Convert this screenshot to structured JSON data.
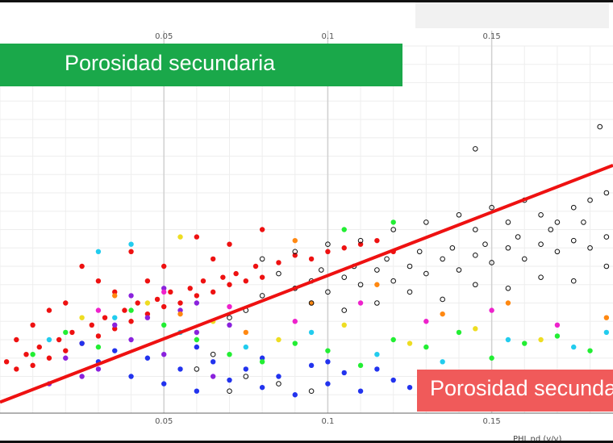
{
  "chart_data": {
    "type": "scatter",
    "x_ticks": [
      "0.05",
      "0.1",
      "0.15"
    ],
    "xlabel": "PHI_nd (v/v)",
    "xlim": [
      0.0,
      0.187
    ],
    "ylim": [
      0.0,
      1.0
    ],
    "grid": true,
    "annotations": [
      "Porosidad secundaria",
      "Porosidad secundaria"
    ],
    "trend_line": {
      "color": "#ee1111",
      "points": [
        [
          0.0,
          0.03
        ],
        [
          0.187,
          0.675
        ]
      ]
    },
    "series": [
      {
        "color_group": "red",
        "color": "#ee1111",
        "points": [
          [
            0.002,
            0.14
          ],
          [
            0.005,
            0.12
          ],
          [
            0.008,
            0.16
          ],
          [
            0.01,
            0.13
          ],
          [
            0.012,
            0.18
          ],
          [
            0.015,
            0.15
          ],
          [
            0.018,
            0.2
          ],
          [
            0.02,
            0.17
          ],
          [
            0.022,
            0.22
          ],
          [
            0.025,
            0.19
          ],
          [
            0.028,
            0.24
          ],
          [
            0.03,
            0.21
          ],
          [
            0.032,
            0.26
          ],
          [
            0.035,
            0.23
          ],
          [
            0.038,
            0.28
          ],
          [
            0.04,
            0.25
          ],
          [
            0.042,
            0.3
          ],
          [
            0.045,
            0.27
          ],
          [
            0.048,
            0.31
          ],
          [
            0.05,
            0.29
          ],
          [
            0.052,
            0.33
          ],
          [
            0.055,
            0.3
          ],
          [
            0.058,
            0.34
          ],
          [
            0.06,
            0.32
          ],
          [
            0.062,
            0.36
          ],
          [
            0.065,
            0.33
          ],
          [
            0.068,
            0.37
          ],
          [
            0.07,
            0.35
          ],
          [
            0.072,
            0.38
          ],
          [
            0.075,
            0.36
          ],
          [
            0.078,
            0.4
          ],
          [
            0.08,
            0.37
          ],
          [
            0.085,
            0.41
          ],
          [
            0.09,
            0.43
          ],
          [
            0.095,
            0.42
          ],
          [
            0.1,
            0.44
          ],
          [
            0.105,
            0.45
          ],
          [
            0.11,
            0.46
          ],
          [
            0.115,
            0.47
          ],
          [
            0.12,
            0.44
          ],
          [
            0.06,
            0.48
          ],
          [
            0.07,
            0.46
          ],
          [
            0.08,
            0.5
          ],
          [
            0.04,
            0.44
          ],
          [
            0.025,
            0.4
          ],
          [
            0.03,
            0.36
          ],
          [
            0.015,
            0.28
          ],
          [
            0.01,
            0.24
          ],
          [
            0.005,
            0.2
          ],
          [
            0.05,
            0.4
          ],
          [
            0.065,
            0.42
          ],
          [
            0.035,
            0.33
          ],
          [
            0.045,
            0.36
          ],
          [
            0.02,
            0.3
          ]
        ]
      },
      {
        "color_group": "blue",
        "color": "#2233ee",
        "points": [
          [
            0.04,
            0.1
          ],
          [
            0.05,
            0.08
          ],
          [
            0.06,
            0.06
          ],
          [
            0.07,
            0.09
          ],
          [
            0.08,
            0.07
          ],
          [
            0.09,
            0.05
          ],
          [
            0.1,
            0.08
          ],
          [
            0.11,
            0.06
          ],
          [
            0.12,
            0.09
          ],
          [
            0.125,
            0.07
          ],
          [
            0.13,
            0.1
          ],
          [
            0.115,
            0.12
          ],
          [
            0.105,
            0.11
          ],
          [
            0.095,
            0.13
          ],
          [
            0.085,
            0.1
          ],
          [
            0.075,
            0.12
          ],
          [
            0.065,
            0.14
          ],
          [
            0.055,
            0.12
          ],
          [
            0.045,
            0.15
          ],
          [
            0.035,
            0.17
          ],
          [
            0.025,
            0.19
          ],
          [
            0.03,
            0.14
          ],
          [
            0.06,
            0.18
          ],
          [
            0.08,
            0.15
          ],
          [
            0.1,
            0.14
          ]
        ]
      },
      {
        "color_group": "purple",
        "color": "#8a22dd",
        "points": [
          [
            0.02,
            0.15
          ],
          [
            0.03,
            0.12
          ],
          [
            0.04,
            0.2
          ],
          [
            0.05,
            0.16
          ],
          [
            0.06,
            0.22
          ],
          [
            0.045,
            0.26
          ],
          [
            0.055,
            0.28
          ],
          [
            0.035,
            0.24
          ],
          [
            0.025,
            0.1
          ],
          [
            0.015,
            0.08
          ],
          [
            0.065,
            0.1
          ],
          [
            0.07,
            0.24
          ],
          [
            0.05,
            0.34
          ],
          [
            0.04,
            0.32
          ],
          [
            0.06,
            0.3
          ]
        ]
      },
      {
        "color_group": "green",
        "color": "#22ee33",
        "points": [
          [
            0.01,
            0.16
          ],
          [
            0.02,
            0.22
          ],
          [
            0.03,
            0.18
          ],
          [
            0.04,
            0.28
          ],
          [
            0.05,
            0.24
          ],
          [
            0.06,
            0.2
          ],
          [
            0.07,
            0.16
          ],
          [
            0.08,
            0.14
          ],
          [
            0.09,
            0.19
          ],
          [
            0.1,
            0.17
          ],
          [
            0.11,
            0.13
          ],
          [
            0.12,
            0.2
          ],
          [
            0.13,
            0.18
          ],
          [
            0.14,
            0.22
          ],
          [
            0.15,
            0.15
          ],
          [
            0.16,
            0.19
          ],
          [
            0.17,
            0.21
          ],
          [
            0.18,
            0.17
          ],
          [
            0.12,
            0.52
          ],
          [
            0.105,
            0.5
          ]
        ]
      },
      {
        "color_group": "cyan",
        "color": "#22ccee",
        "points": [
          [
            0.015,
            0.2
          ],
          [
            0.035,
            0.26
          ],
          [
            0.055,
            0.22
          ],
          [
            0.075,
            0.18
          ],
          [
            0.095,
            0.22
          ],
          [
            0.115,
            0.16
          ],
          [
            0.135,
            0.14
          ],
          [
            0.155,
            0.2
          ],
          [
            0.175,
            0.18
          ],
          [
            0.185,
            0.22
          ],
          [
            0.03,
            0.44
          ],
          [
            0.04,
            0.46
          ]
        ]
      },
      {
        "color_group": "yellow",
        "color": "#eedd22",
        "points": [
          [
            0.025,
            0.26
          ],
          [
            0.045,
            0.3
          ],
          [
            0.065,
            0.25
          ],
          [
            0.085,
            0.2
          ],
          [
            0.105,
            0.24
          ],
          [
            0.125,
            0.19
          ],
          [
            0.145,
            0.23
          ],
          [
            0.165,
            0.2
          ],
          [
            0.055,
            0.48
          ]
        ]
      },
      {
        "color_group": "orange",
        "color": "#ff8811",
        "points": [
          [
            0.035,
            0.32
          ],
          [
            0.055,
            0.27
          ],
          [
            0.075,
            0.22
          ],
          [
            0.095,
            0.3
          ],
          [
            0.115,
            0.35
          ],
          [
            0.135,
            0.27
          ],
          [
            0.155,
            0.3
          ],
          [
            0.185,
            0.26
          ],
          [
            0.09,
            0.47
          ]
        ]
      },
      {
        "color_group": "magenta",
        "color": "#ee22cc",
        "points": [
          [
            0.03,
            0.28
          ],
          [
            0.05,
            0.33
          ],
          [
            0.07,
            0.29
          ],
          [
            0.09,
            0.25
          ],
          [
            0.11,
            0.3
          ],
          [
            0.13,
            0.25
          ],
          [
            0.15,
            0.28
          ],
          [
            0.17,
            0.24
          ]
        ]
      },
      {
        "color_group": "black-open",
        "color": "#111111",
        "points": [
          [
            0.085,
            0.38
          ],
          [
            0.09,
            0.34
          ],
          [
            0.095,
            0.36
          ],
          [
            0.1,
            0.33
          ],
          [
            0.105,
            0.37
          ],
          [
            0.11,
            0.35
          ],
          [
            0.115,
            0.39
          ],
          [
            0.12,
            0.36
          ],
          [
            0.125,
            0.4
          ],
          [
            0.13,
            0.38
          ],
          [
            0.135,
            0.42
          ],
          [
            0.14,
            0.39
          ],
          [
            0.145,
            0.43
          ],
          [
            0.15,
            0.41
          ],
          [
            0.155,
            0.45
          ],
          [
            0.16,
            0.42
          ],
          [
            0.165,
            0.46
          ],
          [
            0.17,
            0.44
          ],
          [
            0.175,
            0.47
          ],
          [
            0.18,
            0.45
          ],
          [
            0.185,
            0.48
          ],
          [
            0.145,
            0.5
          ],
          [
            0.155,
            0.52
          ],
          [
            0.165,
            0.54
          ],
          [
            0.175,
            0.56
          ],
          [
            0.18,
            0.58
          ],
          [
            0.185,
            0.6
          ],
          [
            0.178,
            0.52
          ],
          [
            0.168,
            0.5
          ],
          [
            0.158,
            0.48
          ],
          [
            0.148,
            0.46
          ],
          [
            0.138,
            0.45
          ],
          [
            0.128,
            0.44
          ],
          [
            0.118,
            0.42
          ],
          [
            0.108,
            0.4
          ],
          [
            0.098,
            0.39
          ],
          [
            0.08,
            0.32
          ],
          [
            0.075,
            0.28
          ],
          [
            0.07,
            0.26
          ],
          [
            0.095,
            0.3
          ],
          [
            0.105,
            0.28
          ],
          [
            0.115,
            0.3
          ],
          [
            0.125,
            0.33
          ],
          [
            0.135,
            0.31
          ],
          [
            0.145,
            0.35
          ],
          [
            0.155,
            0.34
          ],
          [
            0.165,
            0.37
          ],
          [
            0.175,
            0.36
          ],
          [
            0.185,
            0.4
          ],
          [
            0.183,
            0.78
          ],
          [
            0.145,
            0.72
          ],
          [
            0.17,
            0.52
          ],
          [
            0.16,
            0.58
          ],
          [
            0.15,
            0.56
          ],
          [
            0.14,
            0.54
          ],
          [
            0.13,
            0.52
          ],
          [
            0.12,
            0.5
          ],
          [
            0.11,
            0.47
          ],
          [
            0.1,
            0.46
          ],
          [
            0.09,
            0.44
          ],
          [
            0.08,
            0.42
          ],
          [
            0.07,
            0.06
          ],
          [
            0.075,
            0.1
          ],
          [
            0.085,
            0.08
          ],
          [
            0.095,
            0.06
          ],
          [
            0.06,
            0.12
          ],
          [
            0.065,
            0.16
          ]
        ]
      }
    ]
  },
  "banners": {
    "top": "Porosidad secundaria",
    "bottom": "Porosidad secundaria"
  }
}
